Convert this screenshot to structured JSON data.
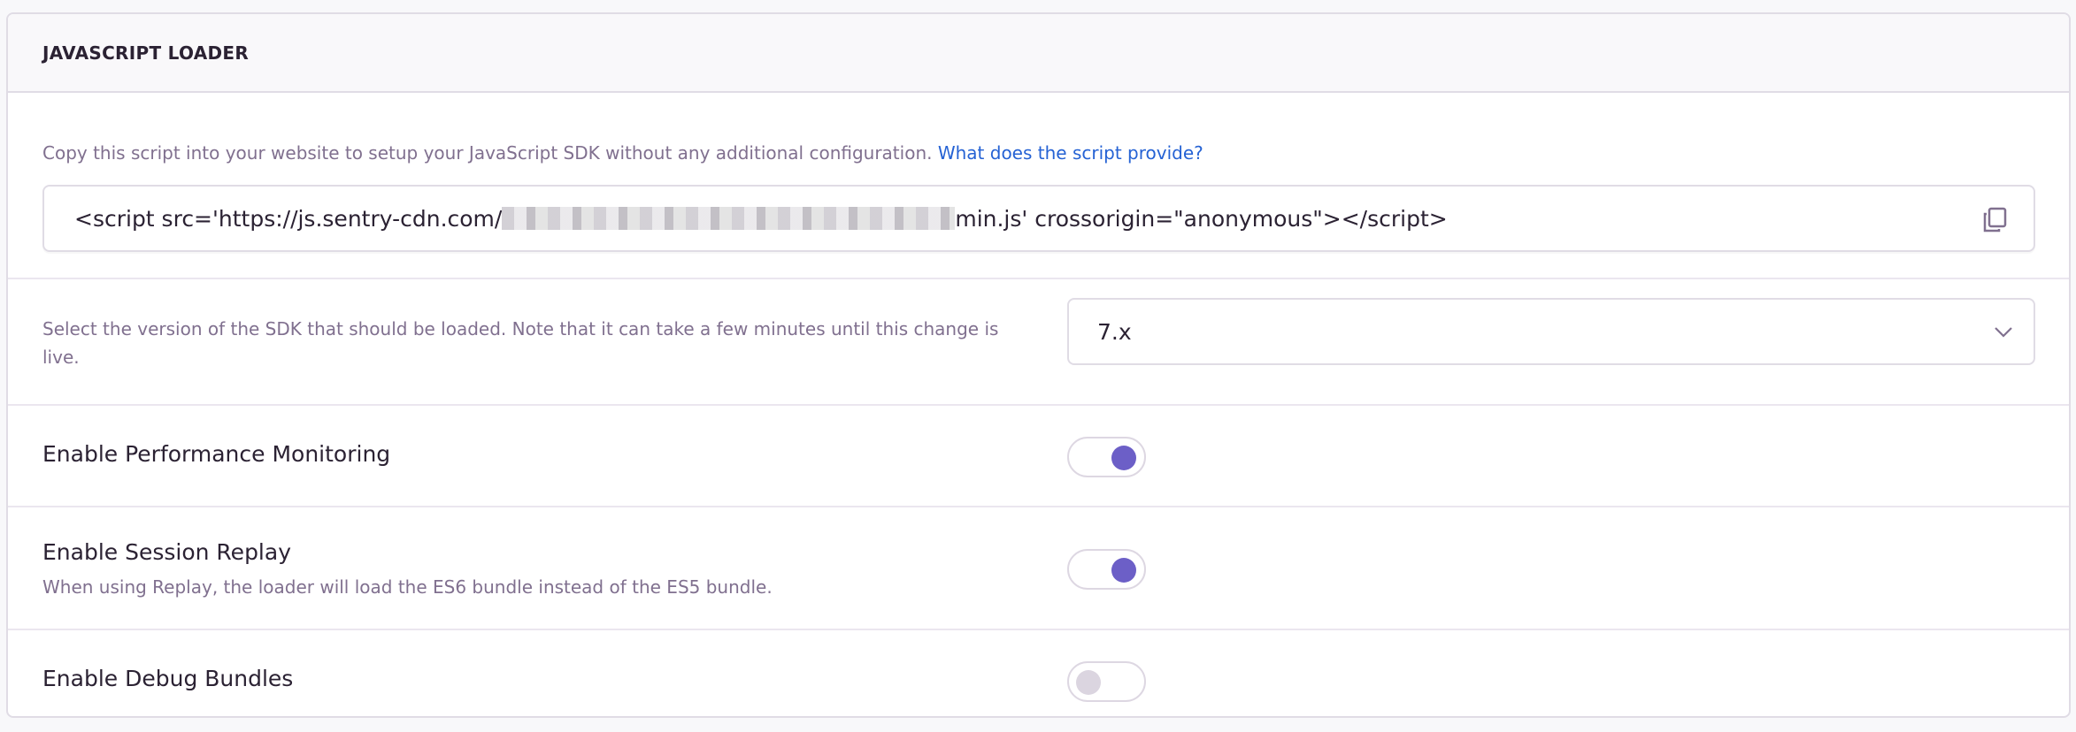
{
  "panel": {
    "title": "JAVASCRIPT LOADER"
  },
  "loader": {
    "description": "Copy this script into your website to setup your JavaScript SDK without any additional configuration.",
    "help_link": "What does the script provide?",
    "script_prefix": "<script src='https://js.sentry-cdn.com/",
    "script_suffix": "min.js' crossorigin=\"anonymous\"></script>",
    "copy_icon": "copy-icon"
  },
  "version": {
    "description": "Select the version of the SDK that should be loaded. Note that it can take a few minutes until this change is live.",
    "selected": "7.x"
  },
  "toggles": [
    {
      "label": "Enable Performance Monitoring",
      "help": "",
      "enabled": true
    },
    {
      "label": "Enable Session Replay",
      "help": "When using Replay, the loader will load the ES6 bundle instead of the ES5 bundle.",
      "enabled": true
    },
    {
      "label": "Enable Debug Bundles",
      "help": "",
      "enabled": false
    }
  ],
  "colors": {
    "accent": "#6c5fc7",
    "link": "#2562d4"
  }
}
